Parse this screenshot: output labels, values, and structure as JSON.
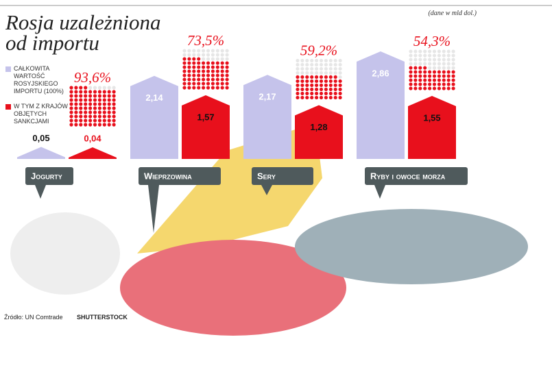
{
  "chart_data": {
    "type": "bar",
    "title": "Rosja uzależniona od importu",
    "note": "(dane w mld dol.)",
    "categories": [
      "Jogurty",
      "Wieprzowina",
      "Sery",
      "Ryby i owoce morza"
    ],
    "series": [
      {
        "name": "CAŁKOWITA WARTOŚĆ ROSYJSKIEGO IMPORTU (100%)",
        "color": "#c5c3eb",
        "values": [
          0.05,
          2.14,
          2.17,
          2.86
        ],
        "value_labels": [
          "0,05",
          "2,14",
          "2,17",
          "2,86"
        ]
      },
      {
        "name": "W TYM Z KRAJÓW OBJĘTYCH SANKCJAMI",
        "color": "#e8101c",
        "values": [
          0.04,
          1.57,
          1.28,
          1.55
        ],
        "value_labels": [
          "0,04",
          "1,57",
          "1,28",
          "1,55"
        ]
      }
    ],
    "shares": [
      93.6,
      73.5,
      59.2,
      54.3
    ],
    "share_labels": [
      "93,6%",
      "73,5%",
      "59,2%",
      "54,3%"
    ],
    "source": "Źródło: UN Comtrade",
    "credit": "SHUTTERSTOCK"
  }
}
